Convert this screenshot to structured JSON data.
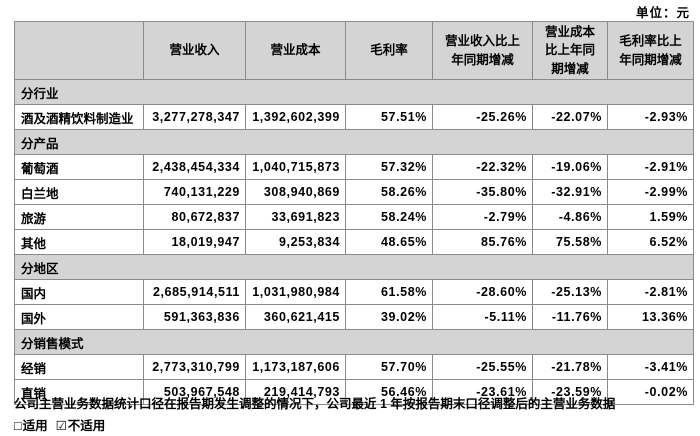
{
  "unit_label": "单位：元",
  "table": {
    "columns": [
      {
        "label": ""
      },
      {
        "label": "营业收入"
      },
      {
        "label": "营业成本"
      },
      {
        "label": "毛利率"
      },
      {
        "label": "营业收入比上\n年同期增减"
      },
      {
        "label": "营业成本\n比上年同\n期增减"
      },
      {
        "label": "毛利率比上\n年同期增减"
      }
    ],
    "rows": [
      {
        "type": "section",
        "label": "分行业"
      },
      {
        "type": "data",
        "label": "酒及酒精饮料制造业",
        "values": [
          "3,277,278,347",
          "1,392,602,399",
          "57.51%",
          "-25.26%",
          "-22.07%",
          "-2.93%"
        ]
      },
      {
        "type": "section",
        "label": "分产品"
      },
      {
        "type": "data",
        "label": "葡萄酒",
        "values": [
          "2,438,454,334",
          "1,040,715,873",
          "57.32%",
          "-22.32%",
          "-19.06%",
          "-2.91%"
        ]
      },
      {
        "type": "data",
        "label": "白兰地",
        "values": [
          "740,131,229",
          "308,940,869",
          "58.26%",
          "-35.80%",
          "-32.91%",
          "-2.99%"
        ]
      },
      {
        "type": "data",
        "label": "旅游",
        "values": [
          "80,672,837",
          "33,691,823",
          "58.24%",
          "-2.79%",
          "-4.86%",
          "1.59%"
        ]
      },
      {
        "type": "data",
        "label": "其他",
        "values": [
          "18,019,947",
          "9,253,834",
          "48.65%",
          "85.76%",
          "75.58%",
          "6.52%"
        ]
      },
      {
        "type": "section",
        "label": "分地区"
      },
      {
        "type": "data",
        "label": "国内",
        "values": [
          "2,685,914,511",
          "1,031,980,984",
          "61.58%",
          "-28.60%",
          "-25.13%",
          "-2.81%"
        ]
      },
      {
        "type": "data",
        "label": "国外",
        "values": [
          "591,363,836",
          "360,621,415",
          "39.02%",
          "-5.11%",
          "-11.76%",
          "13.36%"
        ]
      },
      {
        "type": "section",
        "label": "分销售模式"
      },
      {
        "type": "data",
        "label": "经销",
        "values": [
          "2,773,310,799",
          "1,173,187,606",
          "57.70%",
          "-25.55%",
          "-21.78%",
          "-3.41%"
        ]
      },
      {
        "type": "data",
        "label": "直销",
        "values": [
          "503,967,548",
          "219,414,793",
          "56.46%",
          "-23.61%",
          "-23.59%",
          "-0.02%"
        ]
      }
    ]
  },
  "footer": {
    "note": "公司主营业务数据统计口径在报告期发生调整的情况下，公司最近 1 年按报告期末口径调整后的主营业务数据",
    "options": [
      {
        "symbol": "□",
        "label": "适用",
        "checked": false
      },
      {
        "symbol": "☑",
        "label": "不适用",
        "checked": true
      }
    ]
  },
  "colors": {
    "header_bg": "#d4d4d4",
    "border": "#8a8a8a",
    "text": "#000000"
  }
}
